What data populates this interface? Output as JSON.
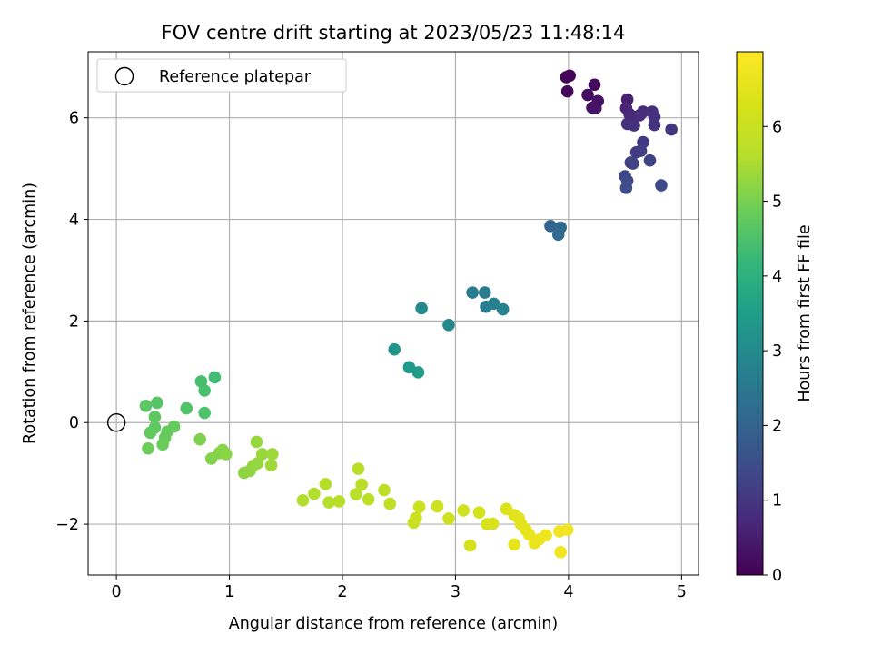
{
  "chart_data": {
    "type": "scatter",
    "title": "FOV centre drift starting at 2023/05/23 11:48:14",
    "xlabel": "Angular distance from reference (arcmin)",
    "ylabel": "Rotation from reference (arcmin)",
    "xlim": [
      -0.25,
      5.15
    ],
    "ylim": [
      -3.0,
      7.3
    ],
    "xticks": [
      0,
      1,
      2,
      3,
      4,
      5
    ],
    "yticks": [
      -2,
      0,
      2,
      4,
      6
    ],
    "xtick_labels": [
      "0",
      "1",
      "2",
      "3",
      "4",
      "5"
    ],
    "ytick_labels": [
      "−2",
      "0",
      "2",
      "4",
      "6"
    ],
    "grid": true,
    "legend": {
      "placement": "upper-left",
      "entries": [
        "Reference platepar"
      ]
    },
    "colormap": "viridis",
    "colorbar": {
      "label": "Hours from first FF file",
      "range": [
        0,
        7.0
      ],
      "ticks": [
        0,
        1,
        2,
        3,
        4,
        5,
        6
      ],
      "tick_labels": [
        "0",
        "1",
        "2",
        "3",
        "4",
        "5",
        "6"
      ]
    },
    "reference_point": {
      "x": 0,
      "y": 0,
      "label": "Reference platepar"
    },
    "series": [
      {
        "points": [
          {
            "x": 3.98,
            "y": 6.8,
            "c": 0.05
          },
          {
            "x": 4.01,
            "y": 6.83,
            "c": 0.08
          },
          {
            "x": 3.99,
            "y": 6.52,
            "c": 0.12
          },
          {
            "x": 4.23,
            "y": 6.65,
            "c": 0.18
          },
          {
            "x": 4.17,
            "y": 6.45,
            "c": 0.22
          },
          {
            "x": 4.26,
            "y": 6.33,
            "c": 0.28
          },
          {
            "x": 4.21,
            "y": 6.2,
            "c": 0.32
          },
          {
            "x": 4.24,
            "y": 6.19,
            "c": 0.35
          },
          {
            "x": 4.52,
            "y": 6.36,
            "c": 0.55
          },
          {
            "x": 4.51,
            "y": 6.19,
            "c": 0.62
          },
          {
            "x": 4.54,
            "y": 6.07,
            "c": 0.68
          },
          {
            "x": 4.58,
            "y": 6.02,
            "c": 0.72
          },
          {
            "x": 4.66,
            "y": 6.12,
            "c": 0.76
          },
          {
            "x": 4.63,
            "y": 6.05,
            "c": 0.8
          },
          {
            "x": 4.74,
            "y": 6.12,
            "c": 0.85
          },
          {
            "x": 4.76,
            "y": 6.02,
            "c": 0.9
          },
          {
            "x": 4.76,
            "y": 5.86,
            "c": 0.95
          },
          {
            "x": 4.52,
            "y": 5.88,
            "c": 0.88
          },
          {
            "x": 4.58,
            "y": 5.85,
            "c": 0.92
          },
          {
            "x": 4.91,
            "y": 5.77,
            "c": 1.0
          },
          {
            "x": 4.66,
            "y": 5.52,
            "c": 1.05
          },
          {
            "x": 4.6,
            "y": 5.32,
            "c": 1.1
          },
          {
            "x": 4.64,
            "y": 5.35,
            "c": 1.15
          },
          {
            "x": 4.55,
            "y": 5.12,
            "c": 1.22
          },
          {
            "x": 4.57,
            "y": 5.1,
            "c": 1.28
          },
          {
            "x": 4.72,
            "y": 5.16,
            "c": 1.3
          },
          {
            "x": 4.5,
            "y": 4.85,
            "c": 1.38
          },
          {
            "x": 4.52,
            "y": 4.76,
            "c": 1.42
          },
          {
            "x": 4.51,
            "y": 4.62,
            "c": 1.48
          },
          {
            "x": 4.82,
            "y": 4.67,
            "c": 1.4
          },
          {
            "x": 3.84,
            "y": 3.87,
            "c": 2.05
          },
          {
            "x": 3.93,
            "y": 3.84,
            "c": 2.1
          },
          {
            "x": 3.91,
            "y": 3.7,
            "c": 2.15
          },
          {
            "x": 3.15,
            "y": 2.56,
            "c": 2.6
          },
          {
            "x": 3.26,
            "y": 2.56,
            "c": 2.65
          },
          {
            "x": 3.27,
            "y": 2.28,
            "c": 2.7
          },
          {
            "x": 3.34,
            "y": 2.34,
            "c": 2.75
          },
          {
            "x": 3.42,
            "y": 2.23,
            "c": 2.8
          },
          {
            "x": 2.7,
            "y": 2.25,
            "c": 3.0
          },
          {
            "x": 2.94,
            "y": 1.92,
            "c": 2.95
          },
          {
            "x": 2.46,
            "y": 1.44,
            "c": 3.3
          },
          {
            "x": 2.59,
            "y": 1.09,
            "c": 3.4
          },
          {
            "x": 2.67,
            "y": 0.99,
            "c": 3.45
          },
          {
            "x": 0.87,
            "y": 0.89,
            "c": 4.35
          },
          {
            "x": 0.75,
            "y": 0.81,
            "c": 4.4
          },
          {
            "x": 0.78,
            "y": 0.63,
            "c": 4.45
          },
          {
            "x": 0.62,
            "y": 0.28,
            "c": 4.55
          },
          {
            "x": 0.78,
            "y": 0.19,
            "c": 4.5
          },
          {
            "x": 0.36,
            "y": 0.39,
            "c": 4.6
          },
          {
            "x": 0.26,
            "y": 0.33,
            "c": 4.65
          },
          {
            "x": 0.34,
            "y": 0.11,
            "c": 4.7
          },
          {
            "x": 0.34,
            "y": -0.1,
            "c": 4.72
          },
          {
            "x": 0.3,
            "y": -0.2,
            "c": 4.75
          },
          {
            "x": 0.51,
            "y": -0.08,
            "c": 4.78
          },
          {
            "x": 0.45,
            "y": -0.18,
            "c": 4.8
          },
          {
            "x": 0.43,
            "y": -0.3,
            "c": 4.82
          },
          {
            "x": 0.41,
            "y": -0.43,
            "c": 4.85
          },
          {
            "x": 0.28,
            "y": -0.51,
            "c": 4.88
          },
          {
            "x": 0.74,
            "y": -0.33,
            "c": 5.05
          },
          {
            "x": 0.84,
            "y": -0.71,
            "c": 5.1
          },
          {
            "x": 0.91,
            "y": -0.6,
            "c": 5.12
          },
          {
            "x": 0.94,
            "y": -0.54,
            "c": 5.15
          },
          {
            "x": 0.97,
            "y": -0.62,
            "c": 5.18
          },
          {
            "x": 1.13,
            "y": -0.99,
            "c": 5.2
          },
          {
            "x": 1.18,
            "y": -0.95,
            "c": 5.22
          },
          {
            "x": 1.21,
            "y": -0.85,
            "c": 5.25
          },
          {
            "x": 1.25,
            "y": -0.8,
            "c": 5.28
          },
          {
            "x": 1.24,
            "y": -0.38,
            "c": 5.3
          },
          {
            "x": 1.29,
            "y": -0.62,
            "c": 5.32
          },
          {
            "x": 1.38,
            "y": -0.62,
            "c": 5.35
          },
          {
            "x": 1.37,
            "y": -0.84,
            "c": 5.38
          },
          {
            "x": 1.65,
            "y": -1.53,
            "c": 5.55
          },
          {
            "x": 1.75,
            "y": -1.4,
            "c": 5.58
          },
          {
            "x": 1.85,
            "y": -1.21,
            "c": 5.6
          },
          {
            "x": 1.88,
            "y": -1.57,
            "c": 5.62
          },
          {
            "x": 1.97,
            "y": -1.55,
            "c": 5.65
          },
          {
            "x": 2.12,
            "y": -1.41,
            "c": 5.7
          },
          {
            "x": 2.14,
            "y": -0.91,
            "c": 5.68
          },
          {
            "x": 2.17,
            "y": -1.22,
            "c": 5.72
          },
          {
            "x": 2.23,
            "y": -1.51,
            "c": 5.75
          },
          {
            "x": 2.37,
            "y": -1.33,
            "c": 5.8
          },
          {
            "x": 2.42,
            "y": -1.6,
            "c": 5.82
          },
          {
            "x": 2.63,
            "y": -1.97,
            "c": 6.0
          },
          {
            "x": 2.65,
            "y": -1.88,
            "c": 6.02
          },
          {
            "x": 2.68,
            "y": -1.66,
            "c": 6.05
          },
          {
            "x": 2.84,
            "y": -1.65,
            "c": 6.1
          },
          {
            "x": 2.94,
            "y": -1.89,
            "c": 6.12
          },
          {
            "x": 3.07,
            "y": -1.73,
            "c": 6.15
          },
          {
            "x": 3.13,
            "y": -2.42,
            "c": 6.2
          },
          {
            "x": 3.21,
            "y": -1.77,
            "c": 6.22
          },
          {
            "x": 3.28,
            "y": -2.0,
            "c": 6.25
          },
          {
            "x": 3.33,
            "y": -1.99,
            "c": 6.28
          },
          {
            "x": 3.45,
            "y": -1.7,
            "c": 6.4
          },
          {
            "x": 3.52,
            "y": -1.82,
            "c": 6.45
          },
          {
            "x": 3.56,
            "y": -1.88,
            "c": 6.48
          },
          {
            "x": 3.58,
            "y": -2.0,
            "c": 6.5
          },
          {
            "x": 3.62,
            "y": -2.1,
            "c": 6.55
          },
          {
            "x": 3.65,
            "y": -2.2,
            "c": 6.6
          },
          {
            "x": 3.7,
            "y": -2.37,
            "c": 6.62
          },
          {
            "x": 3.74,
            "y": -2.3,
            "c": 6.65
          },
          {
            "x": 3.8,
            "y": -2.22,
            "c": 6.7
          },
          {
            "x": 3.52,
            "y": -2.4,
            "c": 6.55
          },
          {
            "x": 3.92,
            "y": -2.14,
            "c": 6.75
          },
          {
            "x": 3.99,
            "y": -2.11,
            "c": 6.8
          },
          {
            "x": 3.93,
            "y": -2.55,
            "c": 6.78
          }
        ]
      }
    ]
  }
}
